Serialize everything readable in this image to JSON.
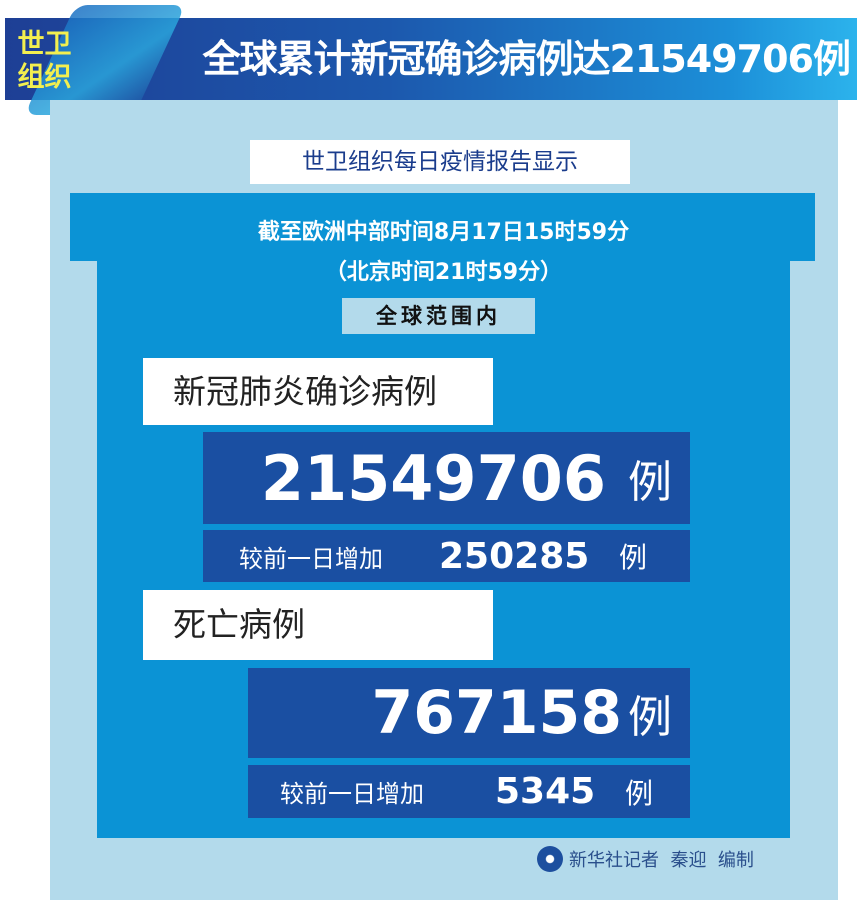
{
  "header": {
    "badge": "世卫组织",
    "title": "全球累计新冠确诊病例达21549706例"
  },
  "report_label": "世卫组织每日疫情报告显示",
  "time_line_1": "截至欧洲中部时间8月17日15时59分",
  "time_line_2": "（北京时间21时59分）",
  "scope": "全球范围内",
  "confirmed": {
    "label": "新冠肺炎确诊病例",
    "total": "21549706",
    "unit": "例",
    "increase_label": "较前一日增加",
    "increase": "250285"
  },
  "deaths": {
    "label": "死亡病例",
    "total": "767158",
    "unit": "例",
    "increase_label": "较前一日增加",
    "increase": "5345"
  },
  "footer": {
    "credit": "新华社记者  秦迎  编制",
    "logo": "xinhua-logo"
  },
  "colors": {
    "dark_blue": "#1a4fa2",
    "mid_blue": "#0b93d5",
    "light_blue": "#b3daeb",
    "badge_yellow": "#f3ef4f"
  }
}
